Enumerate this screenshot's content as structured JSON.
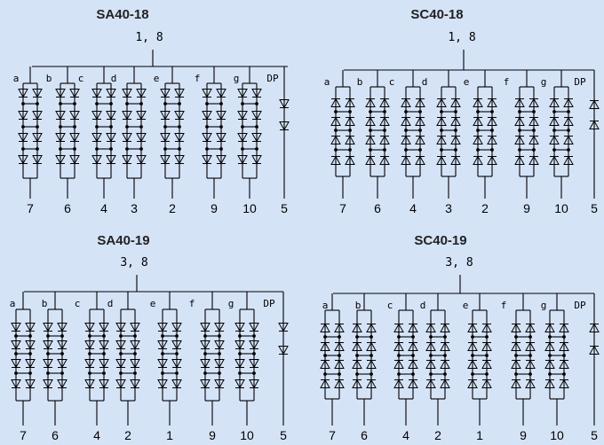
{
  "diagrams": [
    {
      "title": "SA40-18",
      "common_pins": "1, 8",
      "polarity": "anode",
      "segments": [
        {
          "label": "a",
          "pin": "7",
          "columns": 2
        },
        {
          "label": "b",
          "pin": "6",
          "columns": 2
        },
        {
          "label": "c",
          "pin": "4",
          "columns": 2
        },
        {
          "label": "d",
          "pin": "3",
          "columns": 2
        },
        {
          "label": "e",
          "pin": "2",
          "columns": 2
        },
        {
          "label": "f",
          "pin": "9",
          "columns": 2
        },
        {
          "label": "g",
          "pin": "10",
          "columns": 2
        },
        {
          "label": "DP",
          "pin": "5",
          "columns": 1
        }
      ]
    },
    {
      "title": "SC40-18",
      "common_pins": "1, 8",
      "polarity": "cathode",
      "segments": [
        {
          "label": "a",
          "pin": "7",
          "columns": 2
        },
        {
          "label": "b",
          "pin": "6",
          "columns": 2
        },
        {
          "label": "c",
          "pin": "4",
          "columns": 2
        },
        {
          "label": "d",
          "pin": "3",
          "columns": 2
        },
        {
          "label": "e",
          "pin": "2",
          "columns": 2
        },
        {
          "label": "f",
          "pin": "9",
          "columns": 2
        },
        {
          "label": "g",
          "pin": "10",
          "columns": 2
        },
        {
          "label": "DP",
          "pin": "5",
          "columns": 1
        }
      ]
    },
    {
      "title": "SA40-19",
      "common_pins": "3, 8",
      "polarity": "anode",
      "segments": [
        {
          "label": "a",
          "pin": "7",
          "columns": 2
        },
        {
          "label": "b",
          "pin": "6",
          "columns": 2
        },
        {
          "label": "c",
          "pin": "4",
          "columns": 2
        },
        {
          "label": "d",
          "pin": "2",
          "columns": 2
        },
        {
          "label": "e",
          "pin": "1",
          "columns": 2
        },
        {
          "label": "f",
          "pin": "9",
          "columns": 2
        },
        {
          "label": "g",
          "pin": "10",
          "columns": 2
        },
        {
          "label": "DP",
          "pin": "5",
          "columns": 1
        }
      ]
    },
    {
      "title": "SC40-19",
      "common_pins": "3, 8",
      "polarity": "cathode",
      "segments": [
        {
          "label": "a",
          "pin": "7",
          "columns": 2
        },
        {
          "label": "b",
          "pin": "6",
          "columns": 2
        },
        {
          "label": "c",
          "pin": "4",
          "columns": 2
        },
        {
          "label": "d",
          "pin": "2",
          "columns": 2
        },
        {
          "label": "e",
          "pin": "1",
          "columns": 2
        },
        {
          "label": "f",
          "pin": "9",
          "columns": 2
        },
        {
          "label": "g",
          "pin": "10",
          "columns": 2
        },
        {
          "label": "DP",
          "pin": "5",
          "columns": 1
        }
      ]
    }
  ],
  "colors": {
    "background": "#d5e3f7",
    "ink": "#000000",
    "title": "#222222"
  }
}
